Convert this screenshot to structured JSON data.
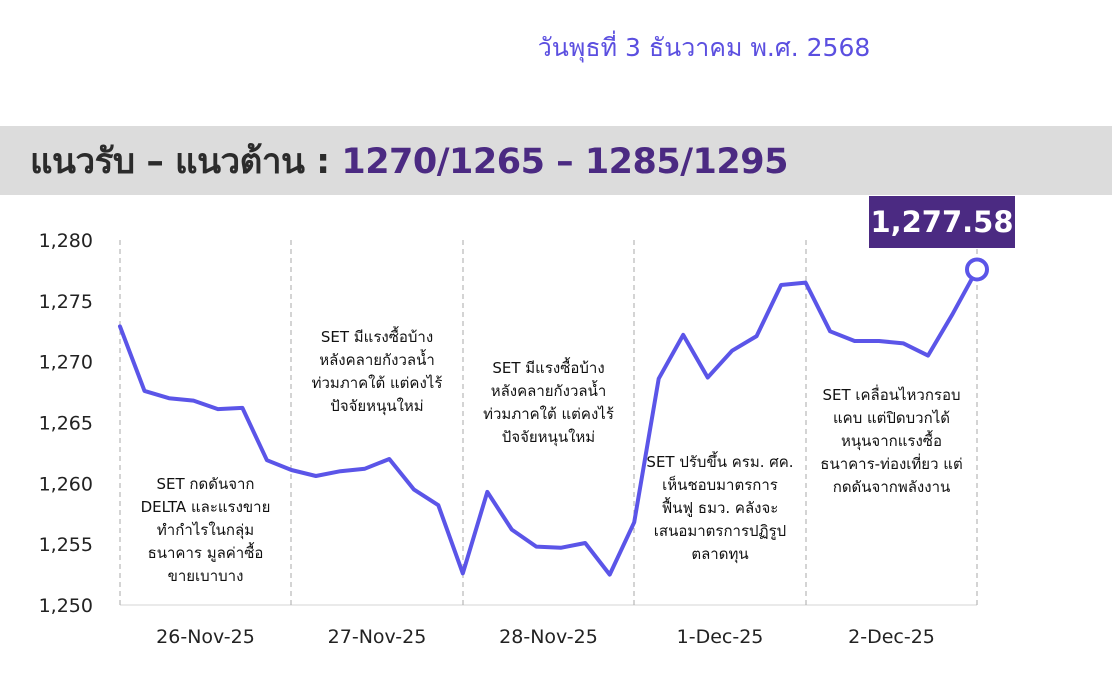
{
  "header": {
    "date": "วันพุธที่ 3 ธันวาคม พ.ศ. 2568",
    "title_prefix": "แนวรับ – แนวต้าน : ",
    "title_levels": "1270/1265 – 1285/1295"
  },
  "colors": {
    "line": "#5b55e8",
    "badge": "#4b2a82",
    "grid_dash": "#a9a9a9",
    "band": "#dcdcdc"
  },
  "chart_data": {
    "type": "line",
    "title": "",
    "xlabel": "",
    "ylabel": "",
    "ylim": [
      1250,
      1280
    ],
    "yticks": [
      1250,
      1255,
      1260,
      1265,
      1270,
      1275,
      1280
    ],
    "ytick_labels": [
      "1,250",
      "1,255",
      "1,260",
      "1,265",
      "1,270",
      "1,275",
      "1,280"
    ],
    "days": [
      "26-Nov-25",
      "27-Nov-25",
      "28-Nov-25",
      "1-Dec-25",
      "2-Dec-25"
    ],
    "series": [
      {
        "values": [
          1272.9,
          1267.6,
          1267.0,
          1266.8,
          1266.1,
          1266.2,
          1261.9,
          1261.1,
          1260.6,
          1261.0,
          1261.2,
          1262.0,
          1259.5,
          1258.2,
          1252.6,
          1259.3,
          1256.2,
          1254.8,
          1254.7,
          1255.1,
          1252.5,
          1256.8,
          1268.6,
          1272.2,
          1268.7,
          1270.9,
          1272.1,
          1276.3,
          1276.5,
          1272.5,
          1271.7,
          1271.7,
          1271.5,
          1270.5,
          1273.9,
          1277.58
        ]
      }
    ],
    "last_value_label": "1,277.58",
    "annotations": [
      {
        "day": "26-Nov-25",
        "lines": [
          "SET กดดันจาก",
          "DELTA และแรงขาย",
          "ทำกำไรในกลุ่ม",
          "ธนาคาร มูลค่าซื้อ",
          "ขายเบาบาง"
        ]
      },
      {
        "day": "27-Nov-25",
        "lines": [
          "SET มีแรงซื้อบ้าง",
          "หลังคลายกังวลน้ำ",
          "ท่วมภาคใต้ แต่คงไร้",
          "ปัจจัยหนุนใหม่"
        ]
      },
      {
        "day": "28-Nov-25",
        "lines": [
          "SET มีแรงซื้อบ้าง",
          "หลังคลายกังวลน้ำ",
          "ท่วมภาคใต้ แต่คงไร้",
          "ปัจจัยหนุนใหม่"
        ]
      },
      {
        "day": "1-Dec-25",
        "lines": [
          "SET ปรับขึ้น ครม. ศค.",
          "เห็นชอบมาตรการ",
          "ฟื้นฟู ธมว. คลังจะ",
          "เสนอมาตรการปฏิรูป",
          "ตลาดทุน"
        ]
      },
      {
        "day": "2-Dec-25",
        "lines": [
          "SET เคลื่อนไหวกรอบ",
          "แคบ แต่ปิดบวกได้",
          "หนุนจากแรงซื้อ",
          "ธนาคาร-ท่องเที่ยว แต่",
          "กดดันจากพลังงาน"
        ]
      }
    ]
  }
}
